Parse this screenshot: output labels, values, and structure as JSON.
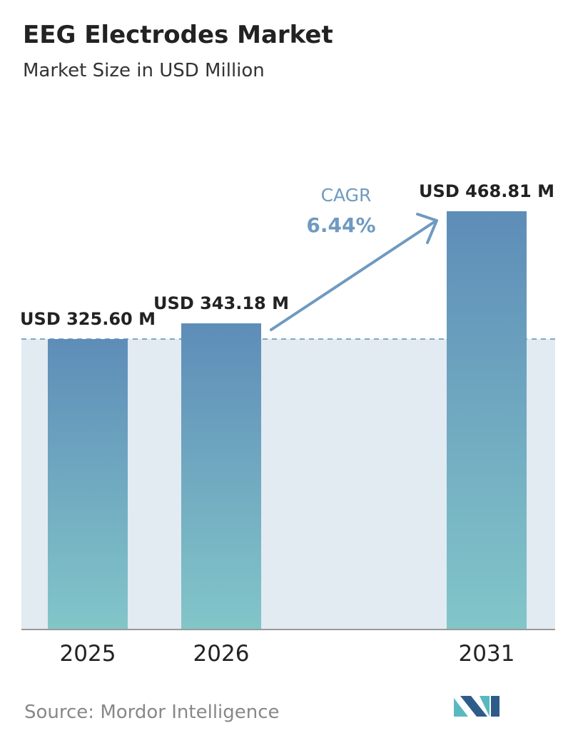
{
  "chart_data": {
    "type": "bar",
    "title": "EEG Electrodes Market",
    "subtitle": "Market Size in USD Million",
    "categories": [
      "2025",
      "2026",
      "2031"
    ],
    "values": [
      325.6,
      343.18,
      468.81
    ],
    "value_labels": [
      "USD 325.60 M",
      "USD 343.18 M",
      "USD 468.81 M"
    ],
    "colors": [
      "#5e8db8",
      "#82c6c9"
    ],
    "annotation": {
      "label": "CAGR",
      "value": "6.44%"
    },
    "source": "Source: Mordor Intelligence"
  }
}
